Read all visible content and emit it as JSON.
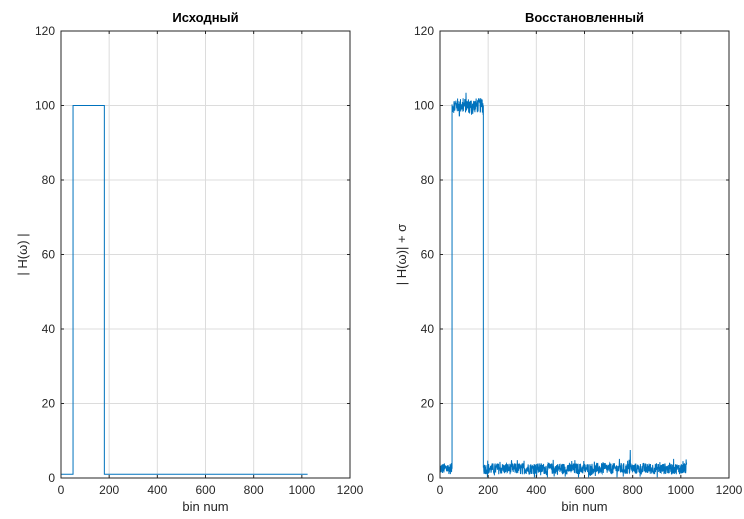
{
  "chart_data": [
    {
      "type": "line",
      "title": "Исходный",
      "xlabel": "bin num",
      "ylabel": "| H(ω) |",
      "xlim": [
        0,
        1200
      ],
      "ylim": [
        0,
        120
      ],
      "xticks": [
        0,
        200,
        400,
        600,
        800,
        1000,
        1200
      ],
      "yticks": [
        0,
        20,
        40,
        60,
        80,
        100,
        120
      ],
      "grid": true,
      "color": "#0072BD",
      "series": [
        {
          "x": [
            0,
            50,
            50,
            180,
            180,
            1024
          ],
          "y": [
            1,
            1,
            100,
            100,
            1,
            1
          ]
        }
      ]
    },
    {
      "type": "line",
      "title": "Восстановленный",
      "xlabel": "bin num",
      "ylabel": "| H(ω)| + σ",
      "xlim": [
        0,
        1200
      ],
      "ylim": [
        0,
        120
      ],
      "xticks": [
        0,
        200,
        400,
        600,
        800,
        1000,
        1200
      ],
      "yticks": [
        0,
        20,
        40,
        60,
        80,
        100,
        120
      ],
      "grid": true,
      "color": "#0072BD",
      "noise": {
        "low_level": 2.5,
        "low_spread": 1.5,
        "high_level": 100,
        "high_spread": 2,
        "rise_x": 50,
        "fall_x": 180,
        "last_x": 1024,
        "spike_x": 790,
        "spike_y": 7.5
      }
    }
  ]
}
